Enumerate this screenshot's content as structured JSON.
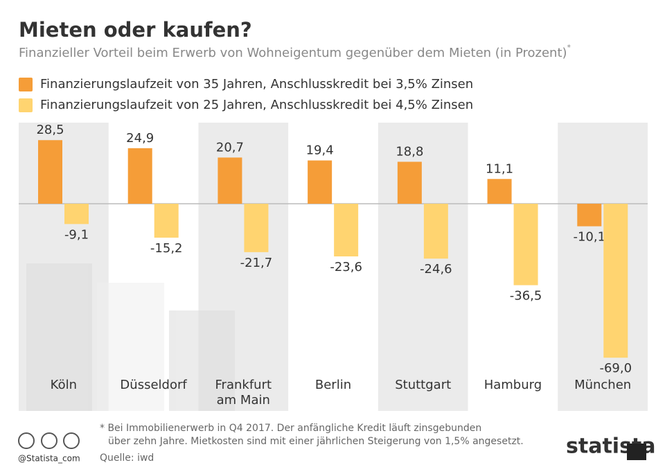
{
  "chart_data": {
    "type": "bar",
    "title": "Mieten oder kaufen?",
    "subtitle": "Finanzieller Vorteil beim Erwerb von Wohneigentum gegenüber dem Mieten (in Prozent)",
    "subtitle_note": "*",
    "categories": [
      "Köln",
      "Düsseldorf",
      "Frankfurt am Main",
      "Berlin",
      "Stuttgart",
      "Hamburg",
      "München"
    ],
    "series": [
      {
        "name": "Finanzierungslaufzeit von 35 Jahren, Anschlusskredit bei 3,5% Zinsen",
        "color": "#f59d38",
        "values": [
          28.5,
          24.9,
          20.7,
          19.4,
          18.8,
          11.1,
          -10.1
        ],
        "value_labels": [
          "28,5",
          "24,9",
          "20,7",
          "19,4",
          "18,8",
          "11,1",
          "-10,1"
        ]
      },
      {
        "name": "Finanzierungslaufzeit von 25 Jahren, Anschlusskredit bei 4,5% Zinsen",
        "color": "#ffd470",
        "values": [
          -9.1,
          -15.2,
          -21.7,
          -23.6,
          -24.6,
          -36.5,
          -69.0
        ],
        "value_labels": [
          "-9,1",
          "-15,2",
          "-21,7",
          "-23,6",
          "-24,6",
          "-36,5",
          "-69,0"
        ]
      }
    ],
    "footnote": [
      "* Bei Immobilienerwerb in Q4 2017. Der anfängliche Kredit läuft zinsgebunden",
      "über zehn Jahre. Mietkosten sind mit einer jährlichen Steigerung von 1,5% angesetzt."
    ],
    "source": "Quelle: iwd",
    "handle": "@Statista_com",
    "brand": "statista"
  }
}
